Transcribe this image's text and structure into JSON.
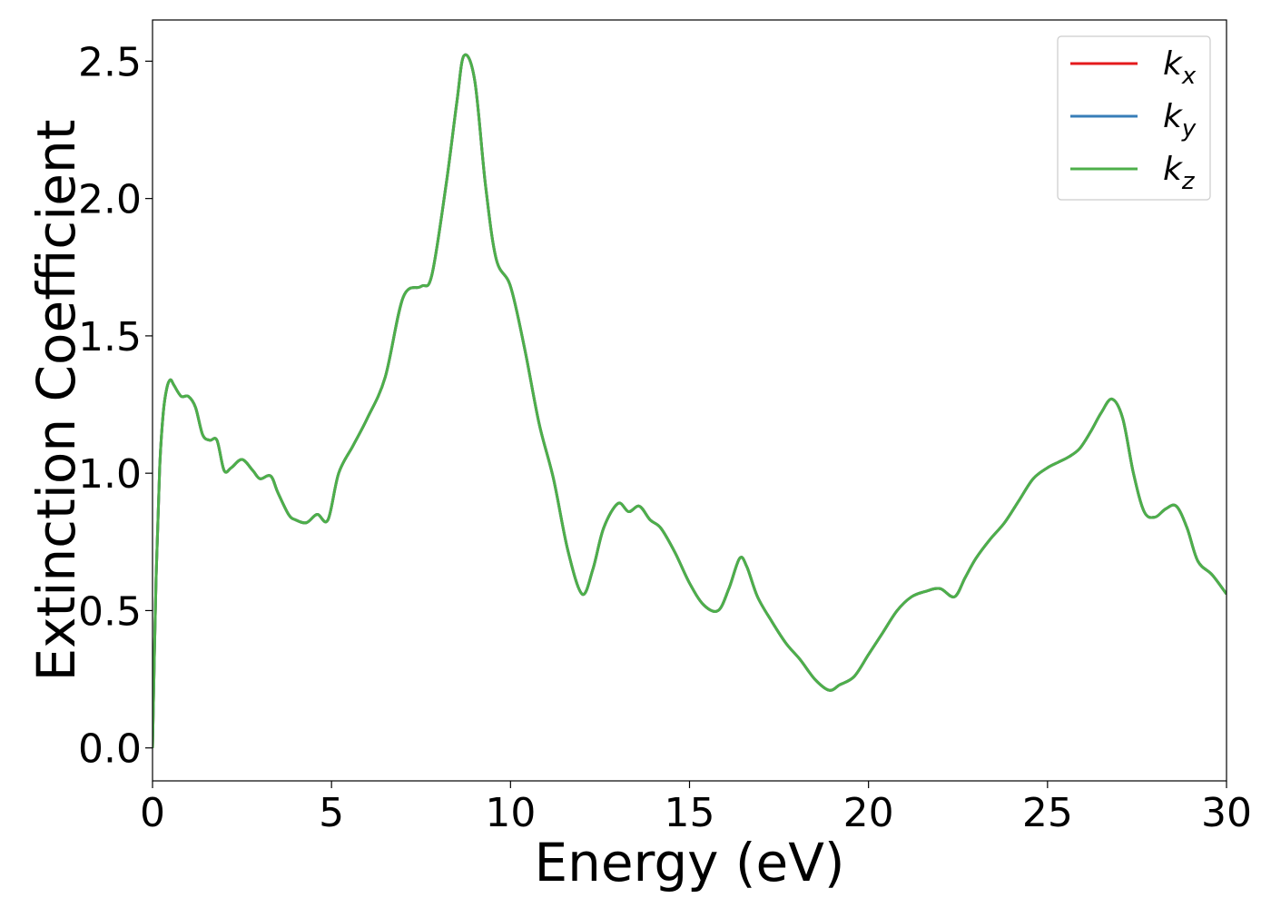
{
  "chart_data": {
    "type": "line",
    "title": "",
    "xlabel": "Energy (eV)",
    "ylabel": "Extinction Coefficient",
    "xlim": [
      0,
      30
    ],
    "ylim": [
      -0.12,
      2.65
    ],
    "xticks": [
      0,
      5,
      10,
      15,
      20,
      25,
      30
    ],
    "xtick_labels": [
      "0",
      "5",
      "10",
      "15",
      "20",
      "25",
      "30"
    ],
    "yticks": [
      0.0,
      0.5,
      1.0,
      1.5,
      2.0,
      2.5
    ],
    "ytick_labels": [
      "0.0",
      "0.5",
      "1.0",
      "1.5",
      "2.0",
      "2.5"
    ],
    "grid": false,
    "legend_position": "top-right",
    "x": [
      0.0,
      0.1,
      0.2,
      0.3,
      0.4,
      0.5,
      0.6,
      0.8,
      1.0,
      1.2,
      1.4,
      1.6,
      1.8,
      2.0,
      2.2,
      2.5,
      2.8,
      3.0,
      3.3,
      3.5,
      3.8,
      4.0,
      4.3,
      4.6,
      4.9,
      5.2,
      5.6,
      6.0,
      6.5,
      7.0,
      7.5,
      7.8,
      8.2,
      8.5,
      8.7,
      9.0,
      9.3,
      9.6,
      10.0,
      10.4,
      10.8,
      11.2,
      11.6,
      12.0,
      12.3,
      12.6,
      13.0,
      13.3,
      13.6,
      13.9,
      14.2,
      14.6,
      15.0,
      15.4,
      15.8,
      16.1,
      16.4,
      16.6,
      16.9,
      17.3,
      17.7,
      18.1,
      18.5,
      18.9,
      19.2,
      19.6,
      20.0,
      20.4,
      20.8,
      21.2,
      21.6,
      22.0,
      22.4,
      22.7,
      23.0,
      23.4,
      23.8,
      24.2,
      24.6,
      25.0,
      25.3,
      25.6,
      25.9,
      26.2,
      26.5,
      26.8,
      27.1,
      27.4,
      27.7,
      28.0,
      28.3,
      28.6,
      28.9,
      29.2,
      29.6,
      30.0
    ],
    "series": [
      {
        "name": "kx",
        "color": "#e41a1c",
        "values": [
          0.0,
          0.62,
          1.02,
          1.22,
          1.31,
          1.34,
          1.32,
          1.28,
          1.28,
          1.24,
          1.14,
          1.12,
          1.12,
          1.01,
          1.02,
          1.05,
          1.01,
          0.98,
          0.99,
          0.93,
          0.85,
          0.83,
          0.82,
          0.85,
          0.83,
          1.0,
          1.1,
          1.2,
          1.35,
          1.64,
          1.68,
          1.72,
          2.05,
          2.35,
          2.52,
          2.43,
          2.05,
          1.78,
          1.68,
          1.45,
          1.18,
          0.98,
          0.72,
          0.56,
          0.65,
          0.8,
          0.89,
          0.86,
          0.88,
          0.83,
          0.8,
          0.71,
          0.6,
          0.52,
          0.5,
          0.58,
          0.69,
          0.66,
          0.55,
          0.46,
          0.38,
          0.32,
          0.25,
          0.21,
          0.23,
          0.26,
          0.34,
          0.42,
          0.5,
          0.55,
          0.57,
          0.58,
          0.55,
          0.62,
          0.69,
          0.76,
          0.82,
          0.9,
          0.98,
          1.02,
          1.04,
          1.06,
          1.09,
          1.15,
          1.22,
          1.27,
          1.2,
          1.0,
          0.86,
          0.84,
          0.87,
          0.88,
          0.8,
          0.68,
          0.63,
          0.56
        ]
      },
      {
        "name": "ky",
        "color": "#377eb8",
        "values": [
          0.0,
          0.62,
          1.02,
          1.22,
          1.31,
          1.34,
          1.32,
          1.28,
          1.28,
          1.24,
          1.14,
          1.12,
          1.12,
          1.01,
          1.02,
          1.05,
          1.01,
          0.98,
          0.99,
          0.93,
          0.85,
          0.83,
          0.82,
          0.85,
          0.83,
          1.0,
          1.1,
          1.2,
          1.35,
          1.64,
          1.68,
          1.72,
          2.05,
          2.35,
          2.52,
          2.43,
          2.05,
          1.78,
          1.68,
          1.45,
          1.18,
          0.98,
          0.72,
          0.56,
          0.65,
          0.8,
          0.89,
          0.86,
          0.88,
          0.83,
          0.8,
          0.71,
          0.6,
          0.52,
          0.5,
          0.58,
          0.69,
          0.66,
          0.55,
          0.46,
          0.38,
          0.32,
          0.25,
          0.21,
          0.23,
          0.26,
          0.34,
          0.42,
          0.5,
          0.55,
          0.57,
          0.58,
          0.55,
          0.62,
          0.69,
          0.76,
          0.82,
          0.9,
          0.98,
          1.02,
          1.04,
          1.06,
          1.09,
          1.15,
          1.22,
          1.27,
          1.2,
          1.0,
          0.86,
          0.84,
          0.87,
          0.88,
          0.8,
          0.68,
          0.63,
          0.56
        ]
      },
      {
        "name": "kz",
        "color": "#4daf4a",
        "values": [
          0.0,
          0.62,
          1.02,
          1.22,
          1.31,
          1.34,
          1.32,
          1.28,
          1.28,
          1.24,
          1.14,
          1.12,
          1.12,
          1.01,
          1.02,
          1.05,
          1.01,
          0.98,
          0.99,
          0.93,
          0.85,
          0.83,
          0.82,
          0.85,
          0.83,
          1.0,
          1.1,
          1.2,
          1.35,
          1.64,
          1.68,
          1.72,
          2.05,
          2.35,
          2.52,
          2.43,
          2.05,
          1.78,
          1.68,
          1.45,
          1.18,
          0.98,
          0.72,
          0.56,
          0.65,
          0.8,
          0.89,
          0.86,
          0.88,
          0.83,
          0.8,
          0.71,
          0.6,
          0.52,
          0.5,
          0.58,
          0.69,
          0.66,
          0.55,
          0.46,
          0.38,
          0.32,
          0.25,
          0.21,
          0.23,
          0.26,
          0.34,
          0.42,
          0.5,
          0.55,
          0.57,
          0.58,
          0.55,
          0.62,
          0.69,
          0.76,
          0.82,
          0.9,
          0.98,
          1.02,
          1.04,
          1.06,
          1.09,
          1.15,
          1.22,
          1.27,
          1.2,
          1.0,
          0.86,
          0.84,
          0.87,
          0.88,
          0.8,
          0.68,
          0.63,
          0.56
        ]
      }
    ],
    "legend": [
      {
        "base": "k",
        "sub": "x",
        "color": "#e41a1c"
      },
      {
        "base": "k",
        "sub": "y",
        "color": "#377eb8"
      },
      {
        "base": "k",
        "sub": "z",
        "color": "#4daf4a"
      }
    ]
  }
}
